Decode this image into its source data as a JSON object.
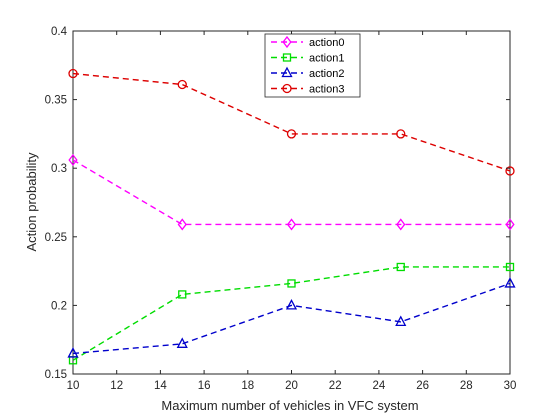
{
  "chart_data": {
    "type": "line",
    "title": "",
    "xlabel": "Maximum number of vehicles in VFC system",
    "ylabel": "Action probability",
    "x": [
      10,
      15,
      20,
      25,
      30
    ],
    "xlim": [
      10,
      30
    ],
    "ylim": [
      0.15,
      0.4
    ],
    "xticks": [
      "10",
      "12",
      "14",
      "16",
      "18",
      "20",
      "22",
      "24",
      "26",
      "28",
      "30"
    ],
    "yticks": [
      "0.15",
      "0.2",
      "0.25",
      "0.3",
      "0.35",
      "0.4"
    ],
    "grid": false,
    "legend_position": "top-center",
    "series": [
      {
        "name": "action0",
        "color": "#ff00ff",
        "marker": "diamond",
        "values": [
          0.306,
          0.259,
          0.259,
          0.259,
          0.259
        ]
      },
      {
        "name": "action1",
        "color": "#00dd00",
        "marker": "square",
        "values": [
          0.16,
          0.208,
          0.216,
          0.228,
          0.228
        ]
      },
      {
        "name": "action2",
        "color": "#0000cc",
        "marker": "triangle",
        "values": [
          0.165,
          0.172,
          0.2,
          0.188,
          0.216
        ]
      },
      {
        "name": "action3",
        "color": "#dd0000",
        "marker": "circle",
        "values": [
          0.369,
          0.361,
          0.325,
          0.325,
          0.298
        ]
      }
    ]
  }
}
